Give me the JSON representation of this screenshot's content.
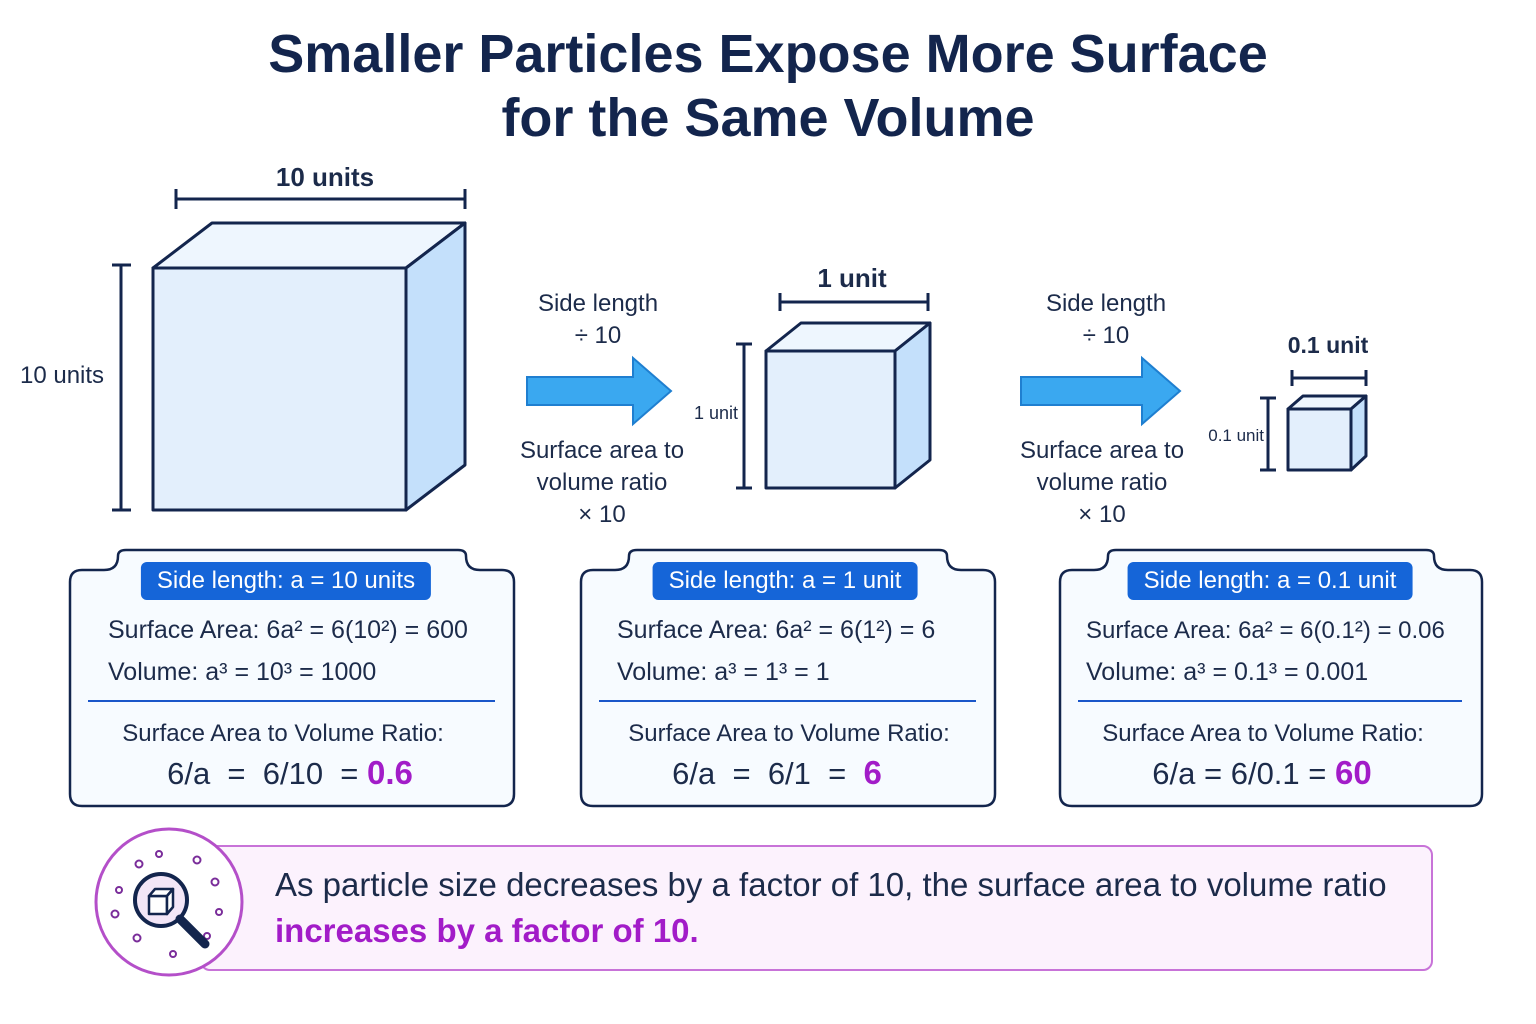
{
  "title": {
    "line1": "Smaller Particles Expose More Surface",
    "line2": "for the Same Volume"
  },
  "cubes": [
    {
      "top_label": "10 units",
      "side_label": "10 units"
    },
    {
      "top_label": "1 unit",
      "side_label": "1 unit"
    },
    {
      "top_label": "0.1 unit",
      "side_label": "0.1 unit"
    }
  ],
  "arrows": [
    {
      "line1": "Side length",
      "line2": "÷ 10",
      "line3": "Surface area to",
      "line4": "volume ratio",
      "line5": "× 10"
    },
    {
      "line1": "Side length",
      "line2": "÷ 10",
      "line3": "Surface area to",
      "line4": "volume ratio",
      "line5": "× 10"
    }
  ],
  "cards": [
    {
      "pill": "Side length: a = 10 units",
      "surface_area": "Surface Area:  6a² = 6(10²) = 600",
      "volume": "Volume:  a³ = 10³ = 1000",
      "ratio_label": "Surface Area to Volume Ratio:",
      "ratio_eq": "6/a  =  6/10  = ",
      "ratio_value": "0.6"
    },
    {
      "pill": "Side length: a = 1 unit",
      "surface_area": "Surface Area:  6a² = 6(1²) = 6",
      "volume": "Volume:  a³ = 1³ = 1",
      "ratio_label": "Surface Area to Volume Ratio:",
      "ratio_eq": "6/a  =  6/1  =  ",
      "ratio_value": "6"
    },
    {
      "pill": "Side length: a = 0.1 unit",
      "surface_area": "Surface Area:  6a² = 6(0.1²) = 0.06",
      "volume": "Volume:  a³ = 0.1³ = 0.001",
      "ratio_label": "Surface Area to Volume Ratio:",
      "ratio_eq": "6/a = 6/0.1 = ",
      "ratio_value": "60"
    }
  ],
  "summary": {
    "text_plain": "As particle size decreases by a factor of 10, the surface area to volume ratio ",
    "text_highlight": "increases by a factor of 10.",
    "icon": "magnifier-cube-icon"
  },
  "colors": {
    "navy": "#13254d",
    "cube_face": "#e3effc",
    "cube_side": "#c4e0fb",
    "arrow": "#3aa8f0",
    "pill": "#1565d8",
    "accent_purple": "#a21cc8"
  }
}
